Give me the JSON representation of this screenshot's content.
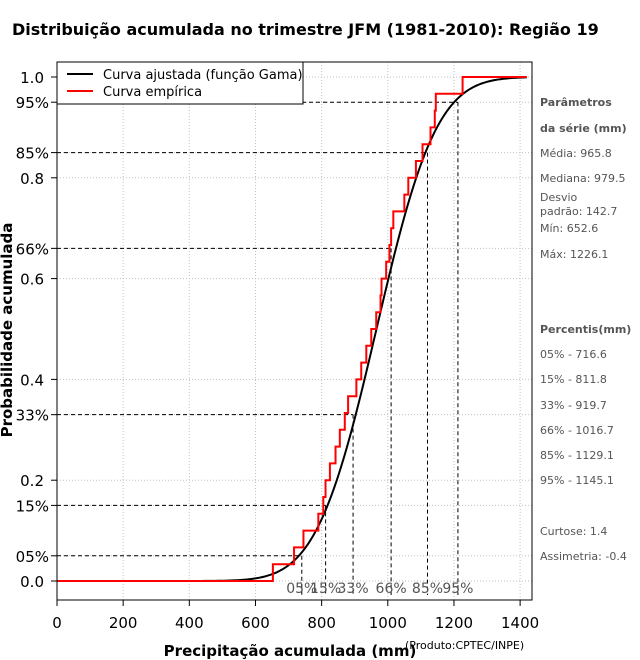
{
  "chart_data": {
    "type": "line",
    "title": "Distribuição acumulada no trimestre JFM (1981-2010): Região 19",
    "xlabel": "Precipitação acumulada (mm)",
    "ylabel": "Probabilidade acumulada",
    "xlim": [
      0,
      1420
    ],
    "ylim": [
      0,
      1.0
    ],
    "x_ticks": [
      0,
      200,
      400,
      600,
      800,
      1000,
      1200,
      1400
    ],
    "y_ticks_numeric": [
      "0.0",
      "0.2",
      "0.4",
      "0.6",
      "0.8",
      "1.0"
    ],
    "y_ticks_percent": [
      {
        "label": "05%",
        "value": 0.05
      },
      {
        "label": "15%",
        "value": 0.15
      },
      {
        "label": "33%",
        "value": 0.33
      },
      {
        "label": "66%",
        "value": 0.66
      },
      {
        "label": "85%",
        "value": 0.85
      },
      {
        "label": "95%",
        "value": 0.95
      }
    ],
    "legend": [
      {
        "label": "Curva ajustada (função Gama)",
        "color": "#000000"
      },
      {
        "label": "Curva empírica",
        "color": "#ff0000"
      }
    ],
    "gamma_fit": {
      "mean": 965.8,
      "sd": 142.7
    },
    "empirical_sample_mm": [
      652.6,
      716.6,
      745,
      790,
      805,
      811.8,
      825,
      842,
      855,
      870,
      880,
      905,
      919.7,
      935,
      950,
      965,
      978,
      981,
      995,
      1005,
      1010,
      1016.7,
      1050,
      1062,
      1085,
      1105,
      1129.1,
      1142,
      1145.1,
      1226.1
    ],
    "percentiles": [
      {
        "label": "05%",
        "p": 0.05,
        "mm": 716.6
      },
      {
        "label": "15%",
        "p": 0.15,
        "mm": 811.8
      },
      {
        "label": "33%",
        "p": 0.33,
        "mm": 919.7
      },
      {
        "label": "66%",
        "p": 0.66,
        "mm": 1016.7
      },
      {
        "label": "85%",
        "p": 0.85,
        "mm": 1129.1
      },
      {
        "label": "95%",
        "p": 0.95,
        "mm": 1145.1
      }
    ],
    "percentile_axis_labels": [
      {
        "label": "05%",
        "mm": 740
      },
      {
        "label": "15%",
        "mm": 812
      },
      {
        "label": "33%",
        "mm": 895
      },
      {
        "label": "66%",
        "mm": 1010
      },
      {
        "label": "85%",
        "mm": 1120
      },
      {
        "label": "95%",
        "mm": 1212
      }
    ]
  },
  "sidebar": {
    "params_title_1": "Parâmetros",
    "params_title_2": "da série (mm)",
    "media": "Média: 965.8",
    "mediana": "Mediana: 979.5",
    "desvio_1": "Desvio",
    "desvio_2": "padrão: 142.7",
    "min": "Mín: 652.6",
    "max": "Máx: 1226.1",
    "percentis_title": "Percentis(mm)",
    "p05": "05% - 716.6",
    "p15": "15% - 811.8",
    "p33": "33% - 919.7",
    "p66": "66% - 1016.7",
    "p85": "85% - 1129.1",
    "p95": "95% - 1145.1",
    "curtose": "Curtose: 1.4",
    "assimetria": "Assimetria: -0.4"
  },
  "credit": "(Produto:CPTEC/INPE)",
  "colors": {
    "fit": "#000000",
    "empirical": "#ff0000",
    "grid": "#c0c0c0",
    "guide": "#000000"
  }
}
